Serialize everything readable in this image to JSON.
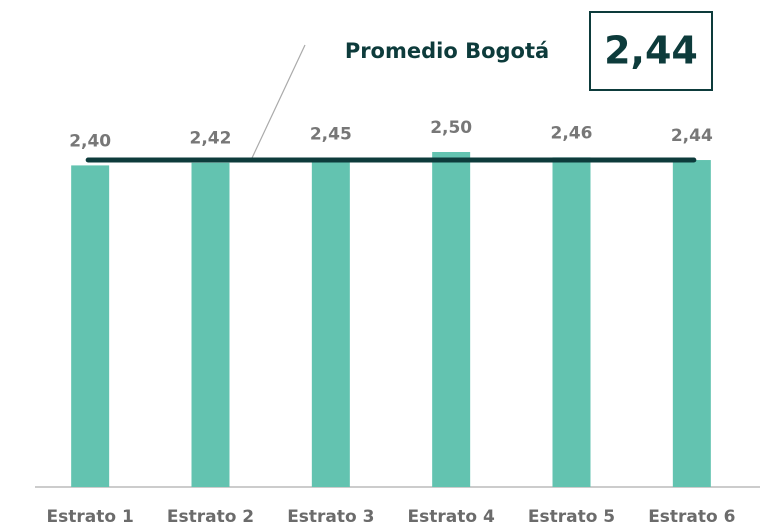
{
  "chart_data": {
    "type": "bar",
    "categories": [
      "Estrato 1",
      "Estrato 2",
      "Estrato 3",
      "Estrato 4",
      "Estrato 5",
      "Estrato 6"
    ],
    "values": [
      2.4,
      2.42,
      2.45,
      2.5,
      2.46,
      2.44
    ],
    "value_labels": [
      "2,40",
      "2,42",
      "2,45",
      "2,50",
      "2,46",
      "2,44"
    ],
    "color": "#63c3b0",
    "ylim": [
      0,
      2.5
    ],
    "reference": {
      "name": "Promedio Bogotá",
      "value": 2.44,
      "label": "2,44",
      "color": "#0d3b3b"
    }
  }
}
